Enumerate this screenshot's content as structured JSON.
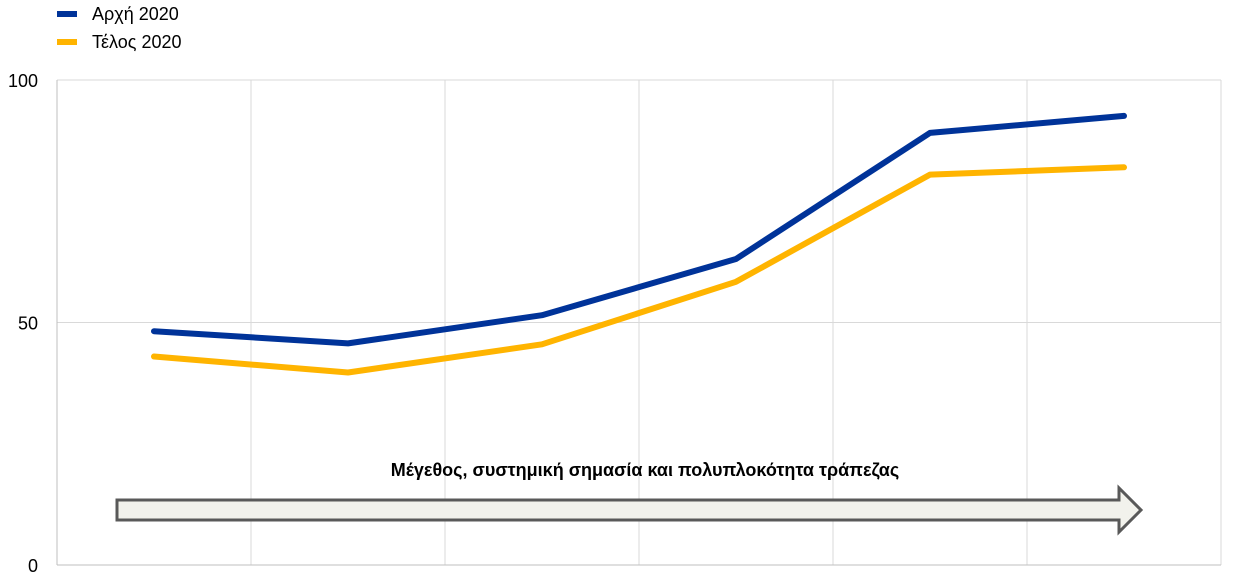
{
  "chart_data": {
    "type": "line",
    "x": [
      1,
      2,
      3,
      4,
      5,
      6
    ],
    "ylim": [
      0,
      100
    ],
    "yticks": [
      0,
      50,
      100
    ],
    "grid": true,
    "legend_position": "top-left",
    "series": [
      {
        "name": "Αρχή 2020",
        "color": "#003399",
        "values": [
          48.2,
          45.7,
          51.5,
          63.1,
          89.1,
          92.6
        ]
      },
      {
        "name": "Τέλος 2020",
        "color": "#FFB400",
        "values": [
          43.0,
          39.7,
          45.5,
          58.4,
          80.5,
          82.0
        ]
      }
    ],
    "annotation": {
      "text": "Μέγεθος, συστημική σημασία και πολυπλοκότητα τράπεζας",
      "arrow_fill": "#f2f2ec",
      "arrow_stroke": "#595959"
    }
  }
}
